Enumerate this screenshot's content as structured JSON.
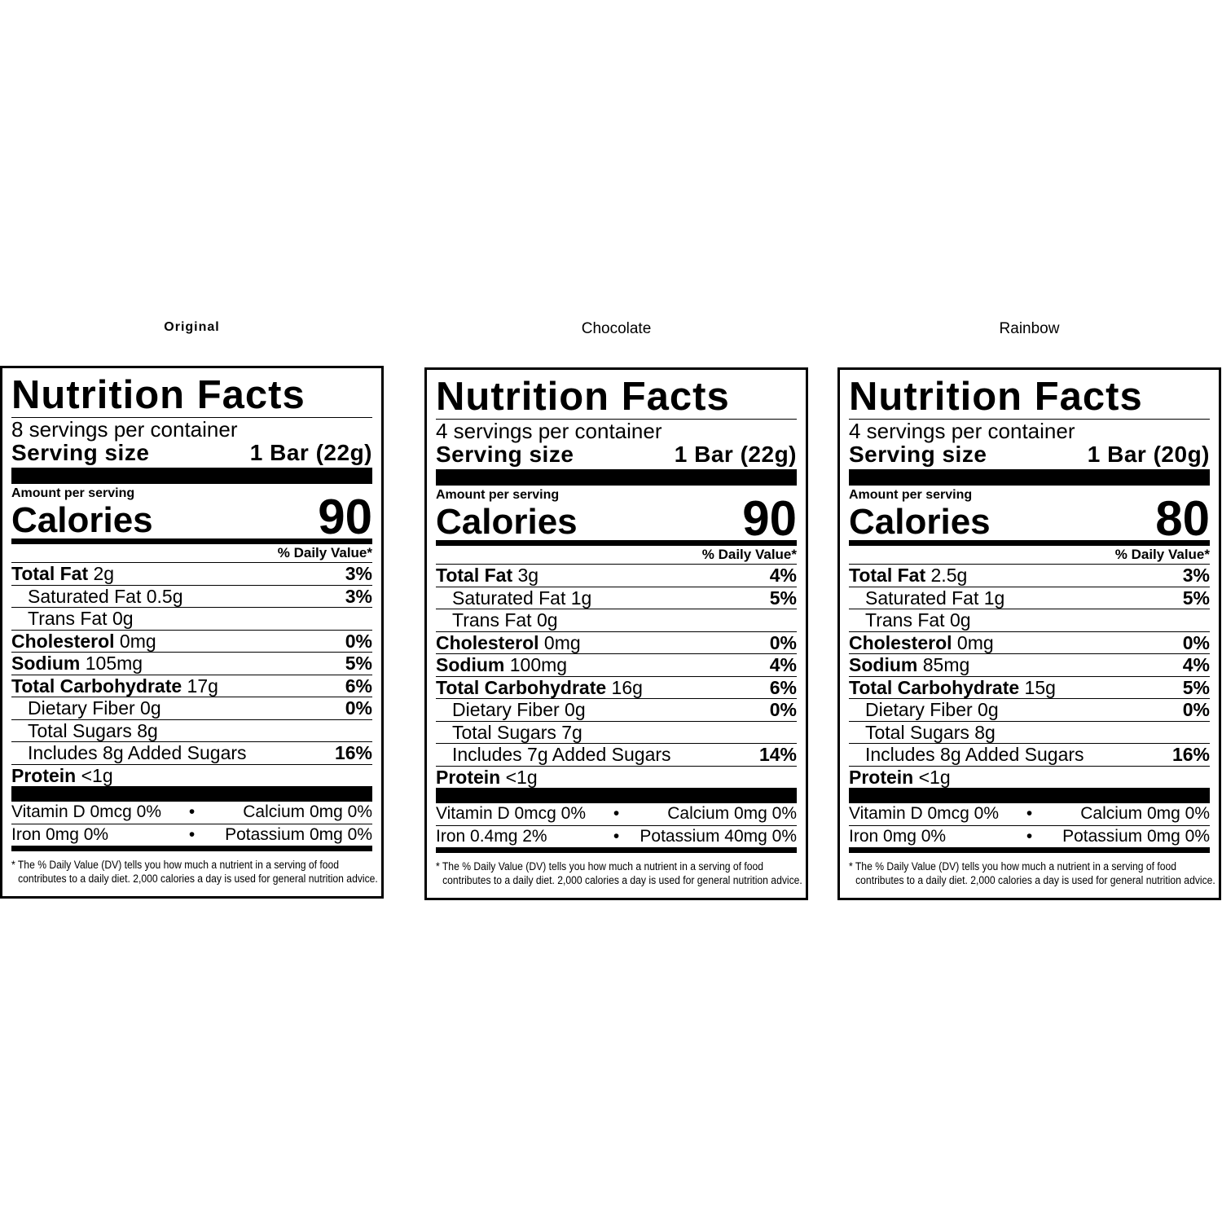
{
  "panels": [
    {
      "name": "Original",
      "title": "Nutrition Facts",
      "servings": "8 servings per container",
      "serving_size_label": "Serving size",
      "serving_size": "1 Bar (22g)",
      "amount_per_serving": "Amount per serving",
      "calories_label": "Calories",
      "calories": 90,
      "daily_value_header": "% Daily Value*",
      "nutrients": [
        {
          "label": "Total Fat",
          "amount": "2g",
          "dv": "3%",
          "sub": [
            {
              "label": "Saturated Fat",
              "amount": "0.5g",
              "dv": "3%"
            },
            {
              "label": "Trans Fat",
              "amount": "0g"
            }
          ]
        },
        {
          "label": "Cholesterol",
          "amount": "0mg",
          "dv": "0%"
        },
        {
          "label": "Sodium",
          "amount": "105mg",
          "dv": "5%"
        },
        {
          "label": "Total Carbohydrate",
          "amount": "17g",
          "dv": "6%",
          "sub": [
            {
              "label": "Dietary Fiber",
              "amount": "0g",
              "dv": "0%"
            },
            {
              "label": "Total Sugars",
              "amount": "8g"
            },
            {
              "label": "Includes 8g Added Sugars",
              "dv": "16%"
            }
          ]
        },
        {
          "label": "Protein",
          "amount": "<1g"
        }
      ],
      "vitamins": [
        [
          "Vitamin D 0mcg 0%",
          "Calcium 0mg 0%"
        ],
        [
          "Iron 0mg 0%",
          "Potassium 0mg 0%"
        ]
      ],
      "footnote": [
        "* The % Daily Value (DV) tells you how much a nutrient in a serving of food",
        "contributes to a daily diet. 2,000 calories a day is used for general nutrition advice."
      ]
    },
    {
      "name": "Chocolate",
      "title": "Nutrition Facts",
      "servings": "4 servings per container",
      "serving_size_label": "Serving size",
      "serving_size": "1 Bar (22g)",
      "amount_per_serving": "Amount per serving",
      "calories_label": "Calories",
      "calories": 90,
      "daily_value_header": "% Daily Value*",
      "nutrients": [
        {
          "label": "Total Fat",
          "amount": "3g",
          "dv": "4%",
          "sub": [
            {
              "label": "Saturated Fat",
              "amount": "1g",
              "dv": "5%"
            },
            {
              "label": "Trans Fat",
              "amount": "0g"
            }
          ]
        },
        {
          "label": "Cholesterol",
          "amount": "0mg",
          "dv": "0%"
        },
        {
          "label": "Sodium",
          "amount": "100mg",
          "dv": "4%"
        },
        {
          "label": "Total Carbohydrate",
          "amount": "16g",
          "dv": "6%",
          "sub": [
            {
              "label": "Dietary Fiber",
              "amount": "0g",
              "dv": "0%"
            },
            {
              "label": "Total Sugars",
              "amount": "7g"
            },
            {
              "label": "Includes 7g Added Sugars",
              "dv": "14%"
            }
          ]
        },
        {
          "label": "Protein",
          "amount": "<1g"
        }
      ],
      "vitamins": [
        [
          "Vitamin D 0mcg 0%",
          "Calcium 0mg 0%"
        ],
        [
          "Iron 0.4mg 2%",
          "Potassium 40mg 0%"
        ]
      ],
      "footnote": [
        "* The % Daily Value (DV) tells you how much a nutrient in a serving of food",
        "contributes to a daily diet. 2,000 calories a day is used for general nutrition advice."
      ]
    },
    {
      "name": "Rainbow",
      "title": "Nutrition Facts",
      "servings": "4 servings per container",
      "serving_size_label": "Serving size",
      "serving_size": "1 Bar (20g)",
      "amount_per_serving": "Amount per serving",
      "calories_label": "Calories",
      "calories": 80,
      "daily_value_header": "% Daily Value*",
      "nutrients": [
        {
          "label": "Total Fat",
          "amount": "2.5g",
          "dv": "3%",
          "sub": [
            {
              "label": "Saturated Fat",
              "amount": "1g",
              "dv": "5%"
            },
            {
              "label": "Trans Fat",
              "amount": "0g"
            }
          ]
        },
        {
          "label": "Cholesterol",
          "amount": "0mg",
          "dv": "0%"
        },
        {
          "label": "Sodium",
          "amount": "85mg",
          "dv": "4%"
        },
        {
          "label": "Total Carbohydrate",
          "amount": "15g",
          "dv": "5%",
          "sub": [
            {
              "label": "Dietary Fiber",
              "amount": "0g",
              "dv": "0%"
            },
            {
              "label": "Total Sugars",
              "amount": "8g"
            },
            {
              "label": "Includes 8g Added Sugars",
              "dv": "16%"
            }
          ]
        },
        {
          "label": "Protein",
          "amount": "<1g"
        }
      ],
      "vitamins": [
        [
          "Vitamin D 0mcg 0%",
          "Calcium 0mg 0%"
        ],
        [
          "Iron 0mg 0%",
          "Potassium 0mg 0%"
        ]
      ],
      "footnote": [
        "* The % Daily Value (DV) tells you how much a nutrient in a serving of food",
        "contributes to a daily diet. 2,000 calories a day is used for general nutrition advice."
      ]
    }
  ]
}
